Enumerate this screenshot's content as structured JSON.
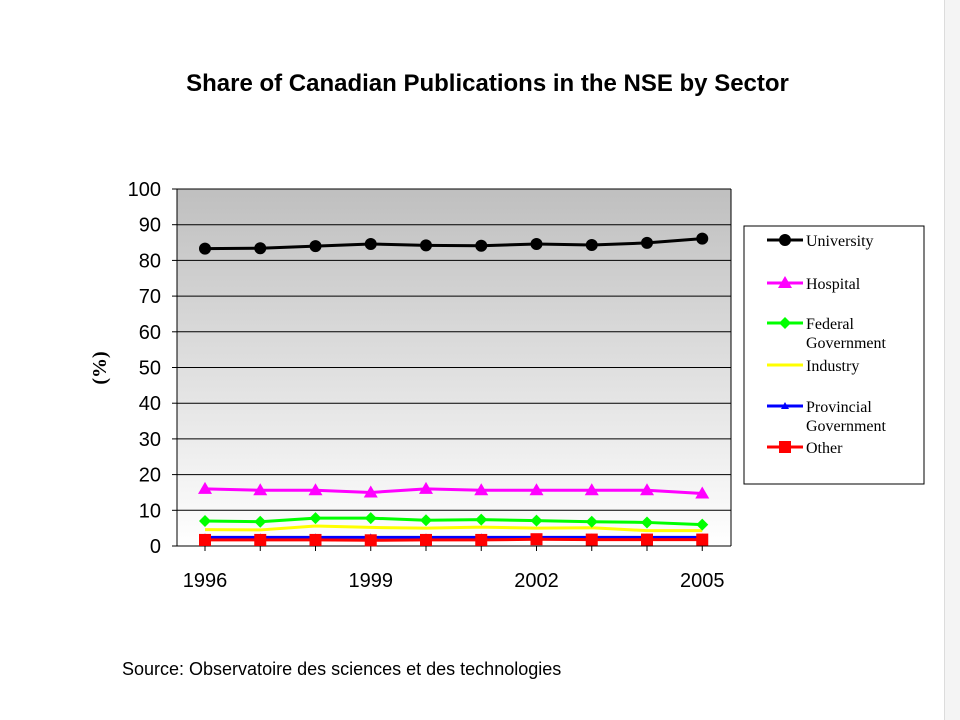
{
  "title": "Share of Canadian Publications in the NSE by Sector",
  "source": "Source: Observatoire des sciences et des technologies",
  "chart_data": {
    "type": "line",
    "title": "Share of Canadian Publications in the NSE by Sector",
    "ylabel": "(%)",
    "xlabel": "",
    "x": [
      1996,
      1997,
      1998,
      1999,
      2000,
      2001,
      2002,
      2003,
      2004,
      2005
    ],
    "x_tick_labels": [
      "1996",
      "1999",
      "2002",
      "2005"
    ],
    "ylim": [
      0,
      100
    ],
    "y_ticks": [
      0,
      10,
      20,
      30,
      40,
      50,
      60,
      70,
      80,
      90,
      100
    ],
    "grid": "horizontal",
    "legend_position": "right",
    "series": [
      {
        "name": "University",
        "color": "#000000",
        "marker": "circle",
        "values": [
          83.3,
          83.4,
          84.0,
          84.6,
          84.2,
          84.1,
          84.6,
          84.3,
          84.9,
          86.1
        ]
      },
      {
        "name": "Hospital",
        "color": "#ff00ff",
        "marker": "triangle",
        "values": [
          16.0,
          15.6,
          15.6,
          15.0,
          16.0,
          15.6,
          15.6,
          15.6,
          15.6,
          14.7
        ]
      },
      {
        "name": "Federal Government",
        "color": "#00ff00",
        "marker": "diamond",
        "values": [
          7.0,
          6.8,
          7.8,
          7.8,
          7.2,
          7.4,
          7.1,
          6.8,
          6.6,
          6.0
        ]
      },
      {
        "name": "Industry",
        "color": "#ffff00",
        "marker": "none",
        "values": [
          4.6,
          4.5,
          5.6,
          5.2,
          5.0,
          5.3,
          5.0,
          5.1,
          4.3,
          4.3
        ]
      },
      {
        "name": "Provincial Government",
        "color": "#0000ff",
        "marker": "triangle-small",
        "values": [
          2.4,
          2.4,
          2.4,
          2.4,
          2.4,
          2.4,
          2.4,
          2.4,
          2.4,
          2.4
        ]
      },
      {
        "name": "Other",
        "color": "#ff0000",
        "marker": "square",
        "values": [
          1.7,
          1.7,
          1.7,
          1.6,
          1.7,
          1.7,
          1.9,
          1.8,
          1.8,
          1.8
        ]
      }
    ]
  }
}
